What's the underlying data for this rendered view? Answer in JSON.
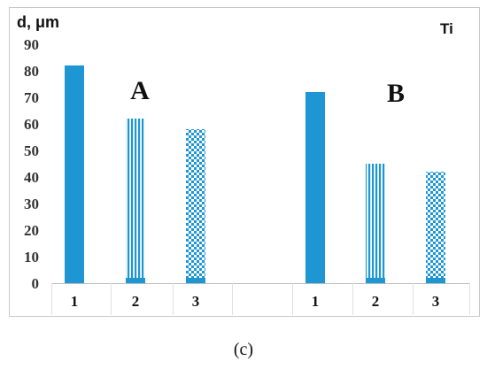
{
  "caption": "(c)",
  "chart_data": {
    "type": "bar",
    "ylabel": "d, μm",
    "panel_label": "Ti",
    "ylim": [
      0,
      90
    ],
    "yticks": [
      0,
      10,
      20,
      30,
      40,
      50,
      60,
      70,
      80,
      90
    ],
    "grid": false,
    "bar_color": "#1e96d4",
    "groups": [
      {
        "label": "A",
        "bars": [
          {
            "category": "1",
            "value": 82,
            "pattern": "solid"
          },
          {
            "category": "2",
            "value": 62,
            "pattern": "vertical-stripes"
          },
          {
            "category": "3",
            "value": 58,
            "pattern": "checkerboard"
          }
        ]
      },
      {
        "label": "B",
        "bars": [
          {
            "category": "1",
            "value": 72,
            "pattern": "solid"
          },
          {
            "category": "2",
            "value": 45,
            "pattern": "vertical-stripes"
          },
          {
            "category": "3",
            "value": 42,
            "pattern": "checkerboard"
          }
        ]
      }
    ]
  }
}
